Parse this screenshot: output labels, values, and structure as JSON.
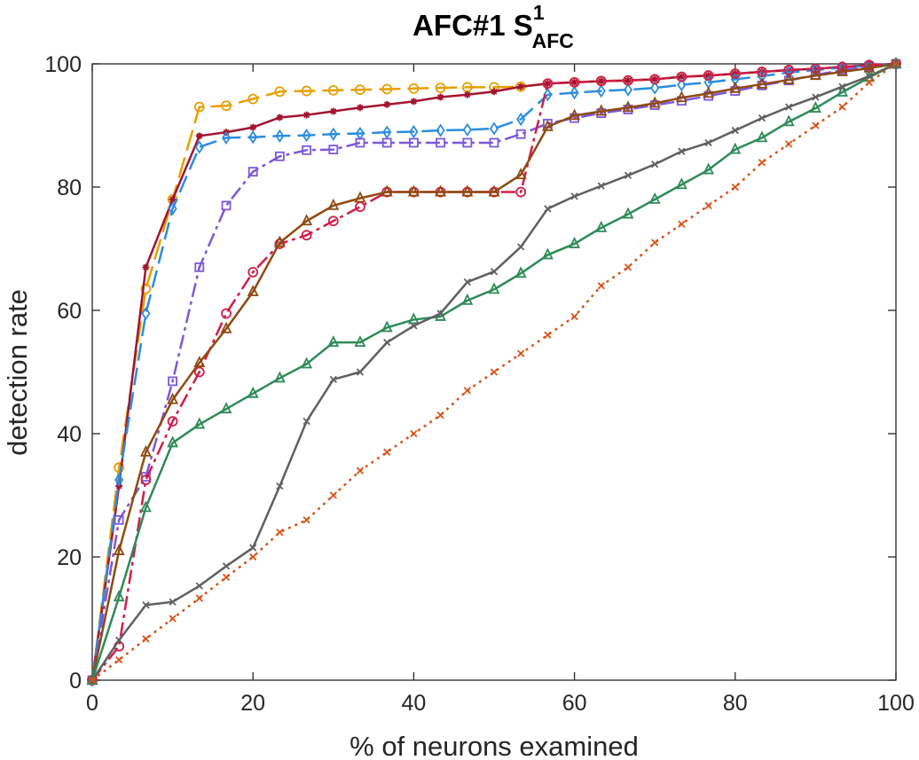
{
  "chart_data": {
    "type": "line",
    "title": "AFC#1 S",
    "title_superscript": "1",
    "title_subscript": "AFC",
    "xlabel": "% of neurons examined",
    "ylabel": "detection rate",
    "xlim": [
      0,
      100
    ],
    "ylim": [
      0,
      100
    ],
    "xticks": [
      0,
      20,
      40,
      60,
      80,
      100
    ],
    "yticks": [
      0,
      20,
      40,
      60,
      80,
      100
    ],
    "grid": false,
    "box": true,
    "series": [
      {
        "color": "#e69f00",
        "dash": "24 8",
        "marker": "circle",
        "x": [
          0,
          3.33,
          6.67,
          10,
          13.33,
          16.67,
          20,
          23.33,
          26.67,
          30,
          33.33,
          36.67,
          40,
          43.33,
          46.67,
          50,
          53.33,
          56.67,
          60,
          63.33,
          66.67,
          70,
          73.33,
          76.67,
          80,
          83.33,
          86.67,
          90,
          93.33,
          96.67,
          100
        ],
        "y": [
          0,
          34.5,
          63.5,
          78,
          93,
          93.2,
          94.3,
          95.5,
          95.6,
          95.7,
          95.8,
          95.9,
          96,
          96.1,
          96.2,
          96.2,
          96.3,
          96.8,
          97,
          97.2,
          97.3,
          97.5,
          97.9,
          98.1,
          98.4,
          98.7,
          99,
          99.2,
          99.5,
          99.8,
          100
        ]
      },
      {
        "color": "#a2142f",
        "dash": "",
        "marker": "star",
        "x": [
          0,
          3.33,
          6.67,
          10,
          13.33,
          16.67,
          20,
          23.33,
          26.67,
          30,
          33.33,
          36.67,
          40,
          43.33,
          46.67,
          50,
          53.33,
          56.67,
          60,
          63.33,
          66.67,
          70,
          73.33,
          76.67,
          80,
          83.33,
          86.67,
          90,
          93.33,
          96.67,
          100
        ],
        "y": [
          0,
          31.5,
          67,
          78,
          88.3,
          88.9,
          89.7,
          91.3,
          91.7,
          92.3,
          92.9,
          93.4,
          93.9,
          94.6,
          95,
          95.5,
          96.3,
          96.8,
          97,
          97.2,
          97.3,
          97.5,
          97.9,
          98.1,
          98.4,
          98.7,
          99,
          99.2,
          99.5,
          99.8,
          100
        ]
      },
      {
        "color": "#2b8de0",
        "dash": "20 8",
        "marker": "diamond",
        "x": [
          0,
          3.33,
          6.67,
          10,
          13.33,
          16.67,
          20,
          23.33,
          26.67,
          30,
          33.33,
          36.67,
          40,
          43.33,
          46.67,
          50,
          53.33,
          56.67,
          60,
          63.33,
          66.67,
          70,
          73.33,
          76.67,
          80,
          83.33,
          86.67,
          90,
          93.33,
          96.67,
          100
        ],
        "y": [
          0,
          32.5,
          59.5,
          76.5,
          86.5,
          88,
          88.1,
          88.3,
          88.4,
          88.6,
          88.7,
          88.9,
          89,
          89.2,
          89.3,
          89.5,
          91,
          95,
          95.3,
          95.6,
          95.8,
          96.1,
          96.6,
          97,
          97.5,
          98,
          98.6,
          99,
          99.4,
          99.7,
          100
        ]
      },
      {
        "color": "#7e57d9",
        "dash": "16 5 4 5",
        "marker": "square",
        "x": [
          0,
          3.33,
          6.67,
          10,
          13.33,
          16.67,
          20,
          23.33,
          26.67,
          30,
          33.33,
          36.67,
          40,
          43.33,
          46.67,
          50,
          53.33,
          56.67,
          60,
          63.33,
          66.67,
          70,
          73.33,
          76.67,
          80,
          83.33,
          86.67,
          90,
          93.33,
          96.67,
          100
        ],
        "y": [
          0,
          26,
          33,
          48.5,
          67,
          77,
          82.5,
          85,
          86,
          86.1,
          87.2,
          87.2,
          87.2,
          87.2,
          87.2,
          87.2,
          88.6,
          90.3,
          91.2,
          92,
          92.6,
          93.3,
          94,
          94.8,
          95.6,
          96.5,
          97.3,
          98.2,
          99,
          99.6,
          100
        ]
      },
      {
        "color": "#d01e4a",
        "dash": "16 5 4 5",
        "marker": "circle",
        "x": [
          0,
          3.33,
          6.67,
          10,
          13.33,
          16.67,
          20,
          23.33,
          26.67,
          30,
          33.33,
          36.67,
          40,
          43.33,
          46.67,
          50,
          53.33,
          56.67,
          60,
          63.33,
          66.67,
          70,
          73.33,
          76.67,
          80,
          83.33,
          86.67,
          90,
          93.33,
          96.67,
          100
        ],
        "y": [
          0,
          5.5,
          32.5,
          42,
          50,
          59.5,
          66.2,
          70.8,
          72.2,
          74.5,
          76.8,
          79.2,
          79.2,
          79.2,
          79.2,
          79.2,
          79.2,
          96.8,
          97,
          97.2,
          97.3,
          97.5,
          97.9,
          98.1,
          98.4,
          98.7,
          99,
          99.2,
          99.5,
          99.8,
          100
        ]
      },
      {
        "color": "#8f4a10",
        "dash": "",
        "marker": "triangle",
        "x": [
          0,
          3.33,
          6.67,
          10,
          13.33,
          16.67,
          20,
          23.33,
          26.67,
          30,
          33.33,
          36.67,
          40,
          43.33,
          46.67,
          50,
          53.33,
          56.67,
          60,
          63.33,
          66.67,
          70,
          73.33,
          76.67,
          80,
          83.33,
          86.67,
          90,
          93.33,
          96.67,
          100
        ],
        "y": [
          0,
          21,
          37,
          45.5,
          51.5,
          57,
          63,
          71,
          74.5,
          77,
          78.2,
          79.2,
          79.2,
          79.2,
          79.2,
          79.2,
          82,
          89.8,
          91.6,
          92.3,
          92.9,
          93.6,
          94.5,
          95.2,
          96,
          96.7,
          97.4,
          98.1,
          98.7,
          99.3,
          100
        ]
      },
      {
        "color": "#2e8b57",
        "dash": "",
        "marker": "triangle",
        "x": [
          0,
          3.33,
          6.67,
          10,
          13.33,
          16.67,
          20,
          23.33,
          26.67,
          30,
          33.33,
          36.67,
          40,
          43.33,
          46.67,
          50,
          53.33,
          56.67,
          60,
          63.33,
          66.67,
          70,
          73.33,
          76.67,
          80,
          83.33,
          86.67,
          90,
          93.33,
          96.67,
          100
        ],
        "y": [
          0,
          13.5,
          28,
          38.5,
          41.5,
          44,
          46.5,
          49,
          51.3,
          54.8,
          54.8,
          57.2,
          58.5,
          59,
          61.6,
          63.4,
          66,
          69,
          70.8,
          73.4,
          75.6,
          78,
          80.4,
          82.8,
          86.1,
          88,
          90.6,
          92.8,
          95.4,
          97.8,
          100
        ]
      },
      {
        "color": "#606060",
        "dash": "",
        "marker": "x",
        "x": [
          0,
          3.33,
          6.67,
          10,
          13.33,
          16.67,
          20,
          23.33,
          26.67,
          30,
          33.33,
          36.67,
          40,
          43.33,
          46.67,
          50,
          53.33,
          56.67,
          60,
          63.33,
          66.67,
          70,
          73.33,
          76.67,
          80,
          83.33,
          86.67,
          90,
          93.33,
          96.67,
          100
        ],
        "y": [
          0,
          6.5,
          12.2,
          12.7,
          15.3,
          18.5,
          21.5,
          31.5,
          42,
          48.8,
          50,
          54.8,
          57.5,
          59.5,
          64.6,
          66.3,
          70.3,
          76.5,
          78.5,
          80.2,
          81.9,
          83.7,
          85.8,
          87.2,
          89.2,
          91.2,
          93,
          94.6,
          96.3,
          98,
          100
        ]
      },
      {
        "color": "#d95319",
        "dash": "3 5",
        "marker": "x",
        "x": [
          0,
          3.33,
          6.67,
          10,
          13.33,
          16.67,
          20,
          23.33,
          26.67,
          30,
          33.33,
          36.67,
          40,
          43.33,
          46.67,
          50,
          53.33,
          56.67,
          60,
          63.33,
          66.67,
          70,
          73.33,
          76.67,
          80,
          83.33,
          86.67,
          90,
          93.33,
          96.67,
          100
        ],
        "y": [
          0,
          3.3,
          6.7,
          10,
          13.3,
          16.7,
          20,
          24,
          26,
          30,
          34,
          37,
          40,
          43,
          47,
          50,
          53,
          56,
          59,
          64,
          67,
          71,
          74,
          77,
          80,
          84,
          87,
          90,
          93,
          97,
          100
        ]
      }
    ]
  }
}
